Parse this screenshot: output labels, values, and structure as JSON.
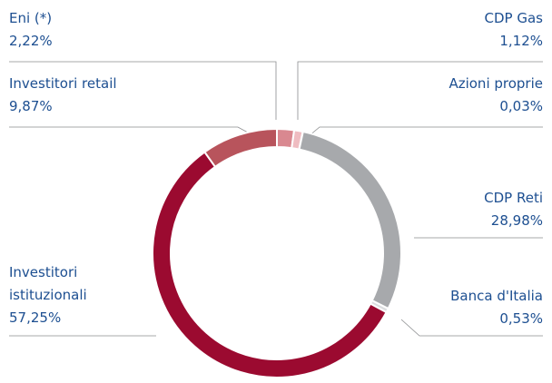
{
  "chart_data": {
    "type": "donut",
    "categories": [
      "Eni (*)",
      "CDP Gas",
      "Azioni proprie",
      "CDP Reti",
      "Banca d'Italia",
      "Investitori istituzionali",
      "Investitori retail"
    ],
    "values": [
      2.22,
      1.12,
      0.03,
      28.98,
      0.53,
      57.25,
      9.87
    ],
    "value_labels": [
      "2,22%",
      "1,12%",
      "0,03%",
      "28,98%",
      "0,53%",
      "57,25%",
      "9,87%"
    ],
    "colors": [
      "#d98890",
      "#efbcc1",
      "#8f0b2a",
      "#a7a9ac",
      "#dcdddf",
      "#9b0a30",
      "#b8545c"
    ]
  }
}
